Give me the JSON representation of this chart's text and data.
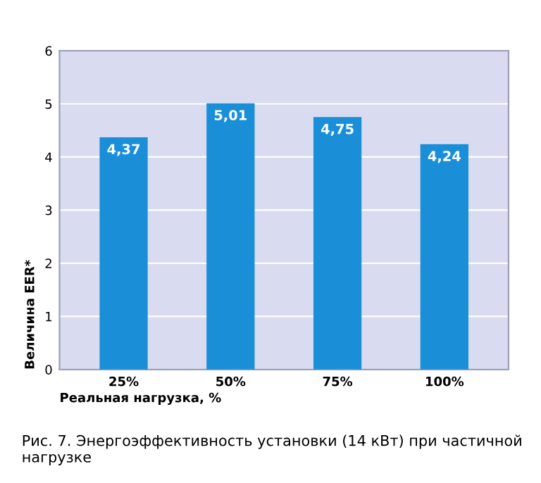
{
  "chart_data": {
    "type": "bar",
    "categories": [
      "25%",
      "50%",
      "75%",
      "100%"
    ],
    "values": [
      4.37,
      5.01,
      4.75,
      4.24
    ],
    "value_labels": [
      "4,37",
      "5,01",
      "4,75",
      "4,24"
    ],
    "color": "#1a8fd8",
    "xlabel": "Реальная нагрузка, %",
    "ylabel": "Величина EER*",
    "ylim": [
      0,
      6
    ],
    "yticks": [
      0,
      1,
      2,
      3,
      4,
      5,
      6
    ],
    "grid": "y",
    "legend": false,
    "annotations": [
      "Рис. 7. Энергоэффективность установки (14 кВт) при частичной нагрузке"
    ]
  }
}
